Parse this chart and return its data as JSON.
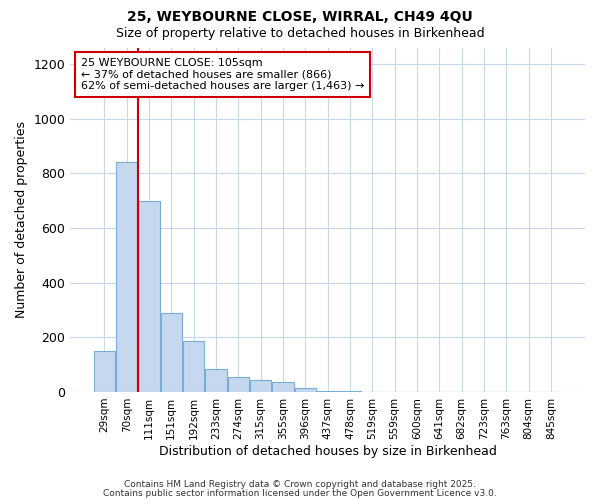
{
  "title1": "25, WEYBOURNE CLOSE, WIRRAL, CH49 4QU",
  "title2": "Size of property relative to detached houses in Birkenhead",
  "xlabel": "Distribution of detached houses by size in Birkenhead",
  "ylabel": "Number of detached properties",
  "bar_labels": [
    "29sqm",
    "70sqm",
    "111sqm",
    "151sqm",
    "192sqm",
    "233sqm",
    "274sqm",
    "315sqm",
    "355sqm",
    "396sqm",
    "437sqm",
    "478sqm",
    "519sqm",
    "559sqm",
    "600sqm",
    "641sqm",
    "682sqm",
    "723sqm",
    "763sqm",
    "804sqm",
    "845sqm"
  ],
  "bar_heights": [
    150,
    840,
    700,
    290,
    185,
    85,
    55,
    45,
    35,
    15,
    5,
    2,
    1,
    0,
    0,
    1,
    0,
    0,
    0,
    0,
    1
  ],
  "bar_color": "#c5d8f0",
  "bar_edge_color": "#7aadd4",
  "property_label": "25 WEYBOURNE CLOSE: 105sqm",
  "annotation_line1": "← 37% of detached houses are smaller (866)",
  "annotation_line2": "62% of semi-detached houses are larger (1,463) →",
  "vline_color": "#cc0000",
  "vline_position": 2,
  "annotation_box_edge": "#cc0000",
  "ylim": [
    0,
    1260
  ],
  "yticks": [
    0,
    200,
    400,
    600,
    800,
    1000,
    1200
  ],
  "bg_color": "#ffffff",
  "plot_bg_color": "#ffffff",
  "grid_color": "#c8d8ec",
  "footer1": "Contains HM Land Registry data © Crown copyright and database right 2025.",
  "footer2": "Contains public sector information licensed under the Open Government Licence v3.0."
}
